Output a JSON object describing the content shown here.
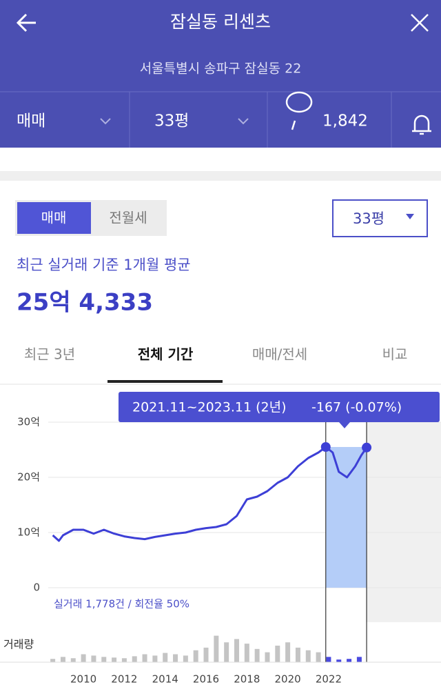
{
  "header": {
    "title": "잠실동 리센츠",
    "address": "서울특별시 송파구 잠실동 22"
  },
  "filters": {
    "trade_type": "매매",
    "size": "33평",
    "comments": "1,842"
  },
  "summary": {
    "toggle": [
      "매매",
      "전월세"
    ],
    "size_select": "33평",
    "caption": "최근 실거래 기준 1개월 평균",
    "price": "25억 4,333"
  },
  "tabs": [
    "최근 3년",
    "전체 기간",
    "매매/전세",
    "비교"
  ],
  "chart_data": {
    "type": "line",
    "tooltip": {
      "period": "2021.11~2023.11 (2년)",
      "change": "-167 (-0.07%)"
    },
    "stats": "실거래 1,778건 / 회전율 50%",
    "x": [
      2008.5,
      2008.8,
      2009,
      2009.5,
      2010,
      2010.5,
      2011,
      2011.5,
      2012,
      2012.5,
      2013,
      2013.5,
      2014,
      2014.5,
      2015,
      2015.5,
      2016,
      2016.5,
      2017,
      2017.5,
      2018,
      2018.5,
      2019,
      2019.5,
      2020,
      2020.5,
      2021,
      2021.5,
      2021.86,
      2022.2,
      2022.5,
      2022.9,
      2023.3,
      2023.6,
      2023.86
    ],
    "series": [
      {
        "color": "#3d3fd6",
        "values": [
          9.5,
          8.5,
          9.5,
          10.5,
          10.5,
          9.8,
          10.5,
          9.8,
          9.3,
          9.0,
          8.8,
          9.2,
          9.5,
          9.8,
          10.0,
          10.5,
          10.8,
          11.0,
          11.5,
          13.0,
          16.0,
          16.5,
          17.5,
          19.0,
          20.0,
          22.0,
          23.5,
          24.5,
          25.5,
          24.5,
          21.0,
          20.0,
          22.0,
          24.0,
          25.4
        ]
      }
    ],
    "xlim": [
      2008,
      2027.5
    ],
    "ylim": [
      0,
      30
    ],
    "xticks": [
      2010,
      2012,
      2014,
      2016,
      2018,
      2020,
      2022
    ],
    "yticks": [
      0,
      {
        "value": 10,
        "label": "10억"
      },
      {
        "value": 20,
        "label": "20억"
      },
      {
        "value": 30,
        "label": "30억"
      }
    ],
    "grid": true,
    "selection_x": [
      2021.86,
      2023.86
    ],
    "selection_color": "#b4cdf8",
    "volume": {
      "label": "거래량",
      "color": "#c4c4c4",
      "selected_color": "#4a4ae0",
      "x": [
        2008.5,
        2009,
        2009.5,
        2010,
        2010.5,
        2011,
        2011.5,
        2012,
        2012.5,
        2013,
        2013.5,
        2014,
        2014.5,
        2015,
        2015.5,
        2016,
        2016.5,
        2017,
        2017.5,
        2018,
        2018.5,
        2019,
        2019.5,
        2020,
        2020.5,
        2021,
        2021.5,
        2022,
        2022.5,
        2023,
        2023.5
      ],
      "values": [
        5,
        8,
        6,
        12,
        10,
        8,
        7,
        6,
        9,
        12,
        10,
        14,
        12,
        10,
        18,
        22,
        40,
        30,
        35,
        28,
        20,
        15,
        25,
        30,
        22,
        18,
        15,
        8,
        4,
        5,
        8
      ]
    }
  }
}
